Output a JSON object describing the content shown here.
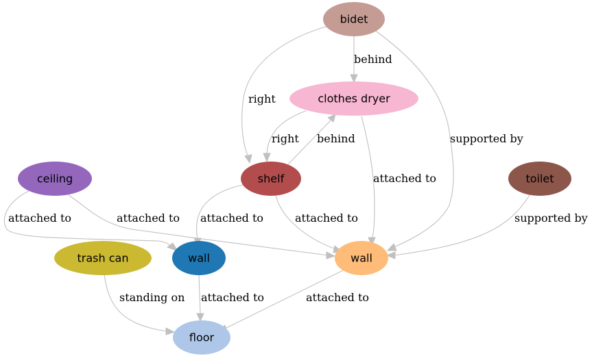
{
  "nodes": {
    "bidet": {
      "label": "bidet",
      "color": "#c49c94"
    },
    "clothes_dryer": {
      "label": "clothes dryer",
      "color": "#f7b6d2"
    },
    "shelf": {
      "label": "shelf",
      "color": "#b34d4d"
    },
    "ceiling": {
      "label": "ceiling",
      "color": "#9467bd"
    },
    "toilet": {
      "label": "toilet",
      "color": "#8c564b"
    },
    "trash_can": {
      "label": "trash can",
      "color": "#cbb932"
    },
    "wall_blue": {
      "label": "wall",
      "color": "#1f77b4"
    },
    "wall_orange": {
      "label": "wall",
      "color": "#ffbb78"
    },
    "floor": {
      "label": "floor",
      "color": "#aec7e8"
    }
  },
  "edges": {
    "bidet_behind_dryer": {
      "from": "bidet",
      "to": "clothes_dryer",
      "label": "behind"
    },
    "bidet_right_shelf": {
      "from": "bidet",
      "to": "shelf",
      "label": "right"
    },
    "bidet_supported_wall": {
      "from": "bidet",
      "to": "wall_orange",
      "label": "supported by"
    },
    "dryer_right_shelf": {
      "from": "clothes_dryer",
      "to": "shelf",
      "label": "right"
    },
    "shelf_behind_dryer": {
      "from": "shelf",
      "to": "clothes_dryer",
      "label": "behind"
    },
    "dryer_attached_wall": {
      "from": "clothes_dryer",
      "to": "wall_orange",
      "label": "attached to"
    },
    "ceiling_attached_wallblue": {
      "from": "ceiling",
      "to": "wall_blue",
      "label": "attached to"
    },
    "ceiling_attached_wallorange": {
      "from": "ceiling",
      "to": "wall_orange",
      "label": "attached to"
    },
    "shelf_attached_wallblue": {
      "from": "shelf",
      "to": "wall_blue",
      "label": "attached to"
    },
    "shelf_attached_wallorange": {
      "from": "shelf",
      "to": "wall_orange",
      "label": "attached to"
    },
    "toilet_supported_wall": {
      "from": "toilet",
      "to": "wall_orange",
      "label": "supported by"
    },
    "trashcan_standing_floor": {
      "from": "trash_can",
      "to": "floor",
      "label": "standing on"
    },
    "wallblue_attached_floor": {
      "from": "wall_blue",
      "to": "floor",
      "label": "attached to"
    },
    "wallorange_attached_floor": {
      "from": "wall_orange",
      "to": "floor",
      "label": "attached to"
    }
  }
}
